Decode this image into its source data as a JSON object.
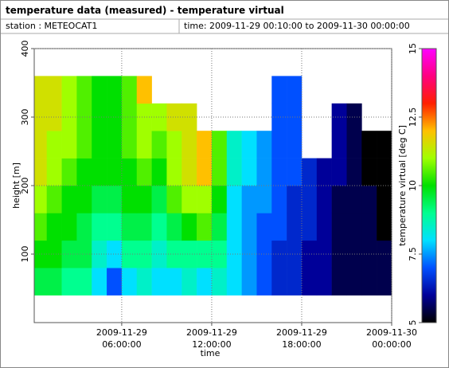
{
  "chart_data": {
    "type": "heatmap",
    "title": "temperature data (measured) - temperature virtual",
    "station": "station : METEOCAT1",
    "time_range": "time: 2009-11-29 00:10:00 to 2009-11-30 00:00:00",
    "xlabel": "time",
    "ylabel": "height [m]",
    "colorbar_label": "temperature virtual [deg C]",
    "x": [
      0.1667,
      1,
      2,
      3,
      4,
      5,
      6,
      7,
      8,
      9,
      10,
      11,
      12,
      13,
      14,
      15,
      16,
      17,
      18,
      19,
      20,
      21,
      22,
      23,
      24
    ],
    "y": [
      40,
      80,
      120,
      160,
      200,
      240,
      280,
      320,
      360
    ],
    "xlim": [
      0.1667,
      24
    ],
    "ylim": [
      0,
      400
    ],
    "zlim": [
      5,
      15
    ],
    "xticks": [
      {
        "value": 6,
        "label": "2009-11-29\n06:00:00"
      },
      {
        "value": 12,
        "label": "2009-11-29\n12:00:00"
      },
      {
        "value": 18,
        "label": "2009-11-29\n18:00:00"
      },
      {
        "value": 24,
        "label": "2009-11-30\n00:00:00"
      }
    ],
    "yticks": [
      100,
      200,
      300,
      400
    ],
    "zticks": [
      5,
      7.5,
      10,
      12.5,
      15
    ],
    "grid": true,
    "colormap": [
      "#000000",
      "#000099",
      "#0050ff",
      "#00e0ff",
      "#00ff90",
      "#00e000",
      "#a0ff00",
      "#ffc000",
      "#ff2000",
      "#ff0080",
      "#ff00ff"
    ],
    "z": [
      [
        9.5,
        9.5,
        9,
        9,
        8,
        7,
        8,
        8.5,
        8,
        8,
        8.5,
        8,
        8.5,
        8,
        7.5,
        7,
        6.5,
        6.5,
        6,
        6,
        5.5,
        5.5,
        5.5,
        5.5
      ],
      [
        10,
        10,
        9.5,
        9.5,
        8.5,
        8,
        9,
        9,
        8.5,
        9,
        9,
        9,
        9,
        8,
        7.5,
        7,
        6.5,
        6.5,
        6,
        6,
        5.5,
        5.5,
        5.5,
        5.5
      ],
      [
        10.5,
        10,
        10,
        9.5,
        9,
        9,
        9.5,
        9.5,
        9,
        9.5,
        10,
        10.5,
        9.5,
        8,
        7.5,
        7,
        7,
        6.5,
        6.5,
        6,
        5.5,
        5.5,
        5.5,
        5
      ],
      [
        11,
        10.5,
        10,
        10,
        9.5,
        9.5,
        10,
        10,
        9.5,
        10.5,
        11,
        11,
        10,
        8,
        7.5,
        7.5,
        7,
        6.5,
        6.5,
        6,
        5.5,
        5.5,
        5.5,
        5
      ],
      [
        11.5,
        11,
        10.5,
        10,
        10,
        10,
        10,
        10.5,
        10,
        11,
        11.5,
        12,
        10.5,
        8.5,
        8,
        7.5,
        7,
        7,
        6.5,
        6,
        6,
        5.5,
        5,
        5
      ],
      [
        11.5,
        11,
        11,
        10.5,
        10,
        10,
        10.5,
        11,
        10.5,
        11,
        11.5,
        12,
        10.5,
        8.5,
        8,
        7.5,
        7,
        7,
        null,
        null,
        6,
        5.5,
        5,
        5
      ],
      [
        11.5,
        11.5,
        11,
        10.5,
        10,
        10,
        10.5,
        11,
        11,
        11.5,
        11.5,
        null,
        null,
        null,
        null,
        null,
        7,
        7,
        null,
        null,
        6,
        5.5,
        null,
        null
      ],
      [
        11.5,
        11.5,
        11,
        10.5,
        10,
        10,
        10.5,
        12,
        null,
        null,
        null,
        null,
        null,
        null,
        null,
        null,
        7,
        7,
        null,
        null,
        null,
        null,
        null,
        null
      ]
    ]
  }
}
